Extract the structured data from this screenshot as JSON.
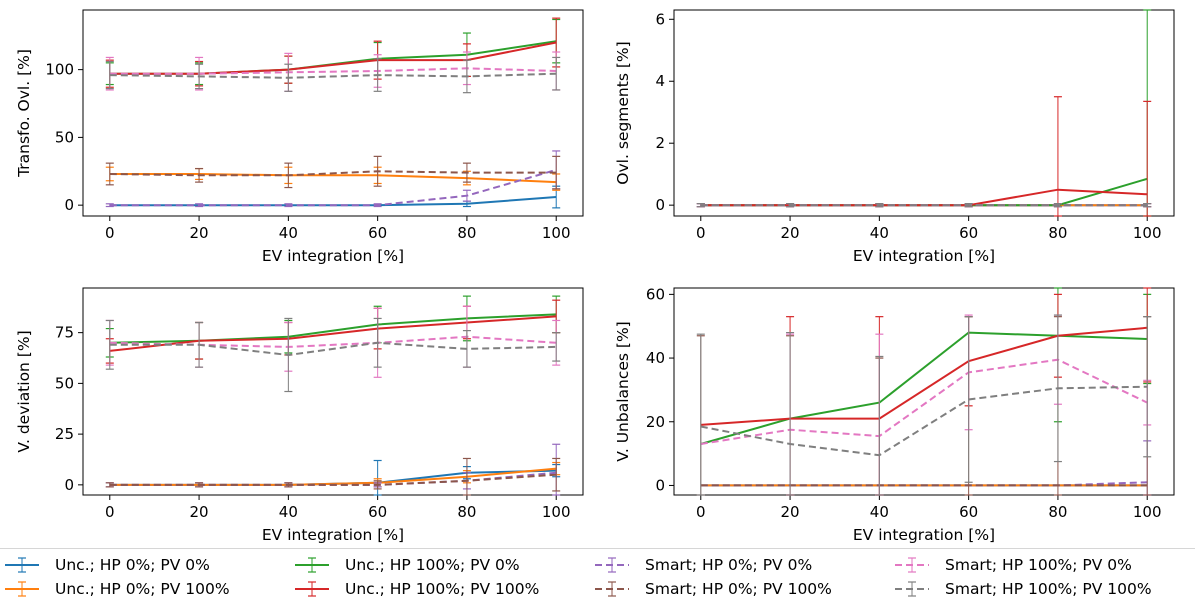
{
  "chart_data": [
    {
      "type": "line",
      "xlabel": "EV integration [%]",
      "ylabel": "Transfo. Ovl. [%]",
      "x": [
        0,
        20,
        40,
        60,
        80,
        100
      ],
      "xticks": [
        0,
        20,
        40,
        60,
        80,
        100
      ],
      "yticks": [
        0,
        50,
        100
      ],
      "xlim": [
        -6,
        106
      ],
      "ylim": [
        -8,
        144
      ],
      "series": [
        {
          "name": "Unc.; HP 0%; PV 0%",
          "color": "#1f77b4",
          "dash": "solid",
          "values": [
            0,
            0,
            0,
            0,
            1,
            6
          ],
          "err": [
            0,
            0,
            0,
            0,
            2,
            8
          ]
        },
        {
          "name": "Unc.; HP 0%; PV 100%",
          "color": "#ff7f0e",
          "dash": "solid",
          "values": [
            23,
            23,
            22,
            22,
            20,
            17
          ],
          "err": [
            5,
            4,
            6,
            6,
            5,
            6
          ]
        },
        {
          "name": "Unc.; HP 100%; PV 0%",
          "color": "#2ca02c",
          "dash": "solid",
          "values": [
            97,
            97,
            100,
            108,
            111,
            121
          ],
          "err": [
            8,
            8,
            10,
            12,
            16,
            16
          ]
        },
        {
          "name": "Unc.; HP 100%; PV 100%",
          "color": "#d62728",
          "dash": "solid",
          "values": [
            97,
            97,
            100,
            107,
            107,
            120
          ],
          "err": [
            10,
            9,
            10,
            14,
            12,
            18
          ]
        },
        {
          "name": "Smart; HP 0%; PV 0%",
          "color": "#9467bd",
          "dash": "dashed",
          "values": [
            0,
            0,
            0,
            0,
            7,
            26
          ],
          "err": [
            1,
            1,
            1,
            1,
            4,
            14
          ]
        },
        {
          "name": "Smart; HP 0%; PV 100%",
          "color": "#8c564b",
          "dash": "dashed",
          "values": [
            23,
            22,
            22,
            25,
            24,
            24
          ],
          "err": [
            8,
            5,
            9,
            11,
            7,
            12
          ]
        },
        {
          "name": "Smart; HP 100%; PV 0%",
          "color": "#e377c2",
          "dash": "dashed",
          "values": [
            97,
            97,
            98,
            99,
            101,
            99
          ],
          "err": [
            12,
            12,
            14,
            12,
            12,
            14
          ]
        },
        {
          "name": "Smart; HP 100%; PV 100%",
          "color": "#7f7f7f",
          "dash": "dashed",
          "values": [
            96,
            95,
            94,
            96,
            95,
            97
          ],
          "err": [
            10,
            9,
            10,
            12,
            12,
            12
          ]
        }
      ]
    },
    {
      "type": "line",
      "xlabel": "EV integration [%]",
      "ylabel": "Ovl. segments [%]",
      "x": [
        0,
        20,
        40,
        60,
        80,
        100
      ],
      "xticks": [
        0,
        20,
        40,
        60,
        80,
        100
      ],
      "yticks": [
        0,
        2,
        4,
        6
      ],
      "xlim": [
        -6,
        106
      ],
      "ylim": [
        -0.35,
        6.3
      ],
      "series": [
        {
          "name": "Unc.; HP 0%; PV 0%",
          "color": "#1f77b4",
          "dash": "solid",
          "values": [
            0,
            0,
            0,
            0,
            0,
            0
          ],
          "err": [
            0,
            0,
            0,
            0,
            0,
            0
          ]
        },
        {
          "name": "Unc.; HP 0%; PV 100%",
          "color": "#ff7f0e",
          "dash": "solid",
          "values": [
            0,
            0,
            0,
            0,
            0,
            0
          ],
          "err": [
            0,
            0,
            0,
            0,
            0,
            0
          ]
        },
        {
          "name": "Unc.; HP 100%; PV 0%",
          "color": "#2ca02c",
          "dash": "solid",
          "values": [
            0,
            0,
            0,
            0,
            0,
            0.85
          ],
          "err": [
            0,
            0,
            0,
            0,
            0,
            6
          ]
        },
        {
          "name": "Unc.; HP 100%; PV 100%",
          "color": "#d62728",
          "dash": "solid",
          "values": [
            0,
            0,
            0,
            0,
            0.5,
            0.35
          ],
          "err": [
            0,
            0,
            0,
            0,
            3,
            3
          ]
        },
        {
          "name": "Smart; HP 0%; PV 0%",
          "color": "#9467bd",
          "dash": "dashed",
          "values": [
            0,
            0,
            0,
            0,
            0,
            0
          ],
          "err": [
            0.05,
            0.05,
            0.05,
            0.05,
            0.05,
            0.05
          ]
        },
        {
          "name": "Smart; HP 0%; PV 100%",
          "color": "#8c564b",
          "dash": "dashed",
          "values": [
            0,
            0,
            0,
            0,
            0,
            0
          ],
          "err": [
            0.05,
            0.05,
            0.05,
            0.05,
            0.05,
            0.05
          ]
        },
        {
          "name": "Smart; HP 100%; PV 0%",
          "color": "#e377c2",
          "dash": "dashed",
          "values": [
            0,
            0,
            0,
            0,
            0,
            0
          ],
          "err": [
            0.05,
            0.05,
            0.05,
            0.05,
            0.05,
            0.05
          ]
        },
        {
          "name": "Smart; HP 100%; PV 100%",
          "color": "#7f7f7f",
          "dash": "dashed",
          "values": [
            0,
            0,
            0,
            0,
            0,
            0
          ],
          "err": [
            0.05,
            0.05,
            0.05,
            0.05,
            0.05,
            0.05
          ]
        }
      ]
    },
    {
      "type": "line",
      "xlabel": "EV integration [%]",
      "ylabel": "V. deviation [%]",
      "x": [
        0,
        20,
        40,
        60,
        80,
        100
      ],
      "xticks": [
        0,
        20,
        40,
        60,
        80,
        100
      ],
      "yticks": [
        0,
        25,
        50,
        75
      ],
      "xlim": [
        -6,
        106
      ],
      "ylim": [
        -5,
        97
      ],
      "series": [
        {
          "name": "Unc.; HP 0%; PV 0%",
          "color": "#1f77b4",
          "dash": "solid",
          "values": [
            0,
            0,
            0,
            1,
            6,
            7
          ],
          "err": [
            0,
            0,
            0,
            11,
            3,
            3
          ]
        },
        {
          "name": "Unc.; HP 0%; PV 100%",
          "color": "#ff7f0e",
          "dash": "solid",
          "values": [
            0,
            0,
            0,
            1,
            4,
            8
          ],
          "err": [
            0,
            0,
            0,
            2,
            3,
            3
          ]
        },
        {
          "name": "Unc.; HP 100%; PV 0%",
          "color": "#2ca02c",
          "dash": "solid",
          "values": [
            70,
            71,
            73,
            79,
            82,
            84
          ],
          "err": [
            7,
            9,
            8,
            9,
            11,
            9
          ]
        },
        {
          "name": "Unc.; HP 100%; PV 100%",
          "color": "#d62728",
          "dash": "solid",
          "values": [
            66,
            71,
            72,
            77,
            80,
            83
          ],
          "err": [
            6,
            9,
            8,
            10,
            8,
            8
          ]
        },
        {
          "name": "Smart; HP 0%; PV 0%",
          "color": "#9467bd",
          "dash": "dashed",
          "values": [
            0,
            0,
            0,
            0,
            2,
            6
          ],
          "err": [
            1,
            1,
            1,
            1,
            4,
            14
          ]
        },
        {
          "name": "Smart; HP 0%; PV 100%",
          "color": "#8c564b",
          "dash": "dashed",
          "values": [
            0,
            0,
            0,
            0,
            2,
            5
          ],
          "err": [
            1,
            1,
            1,
            2,
            11,
            8
          ]
        },
        {
          "name": "Smart; HP 100%; PV 0%",
          "color": "#e377c2",
          "dash": "dashed",
          "values": [
            70,
            69,
            68,
            70,
            73,
            70
          ],
          "err": [
            11,
            11,
            12,
            17,
            15,
            11
          ]
        },
        {
          "name": "Smart; HP 100%; PV 100%",
          "color": "#7f7f7f",
          "dash": "dashed",
          "values": [
            69,
            69,
            64,
            70,
            67,
            68
          ],
          "err": [
            12,
            11,
            18,
            12,
            9,
            7
          ]
        }
      ]
    },
    {
      "type": "line",
      "xlabel": "EV integration [%]",
      "ylabel": "V. Unbalances [%]",
      "x": [
        0,
        20,
        40,
        60,
        80,
        100
      ],
      "xticks": [
        0,
        20,
        40,
        60,
        80,
        100
      ],
      "yticks": [
        0,
        20,
        40,
        60
      ],
      "xlim": [
        -6,
        106
      ],
      "ylim": [
        -3,
        62
      ],
      "series": [
        {
          "name": "Unc.; HP 0%; PV 0%",
          "color": "#1f77b4",
          "dash": "solid",
          "values": [
            0,
            0,
            0,
            0,
            0,
            0
          ],
          "err": [
            0,
            0,
            0,
            0,
            0,
            0
          ]
        },
        {
          "name": "Unc.; HP 0%; PV 100%",
          "color": "#ff7f0e",
          "dash": "solid",
          "values": [
            0,
            0,
            0,
            0,
            0,
            0
          ],
          "err": [
            0,
            0,
            0,
            0,
            0,
            0
          ]
        },
        {
          "name": "Unc.; HP 100%; PV 0%",
          "color": "#2ca02c",
          "dash": "solid",
          "values": [
            13,
            21,
            26,
            48,
            47,
            46
          ],
          "err": [
            0,
            0,
            0,
            0,
            27,
            14
          ]
        },
        {
          "name": "Unc.; HP 100%; PV 100%",
          "color": "#d62728",
          "dash": "solid",
          "values": [
            19,
            21,
            21,
            39,
            47,
            49.5
          ],
          "err": [
            0,
            32,
            32,
            14,
            13,
            17
          ]
        },
        {
          "name": "Smart; HP 0%; PV 0%",
          "color": "#9467bd",
          "dash": "dashed",
          "values": [
            0,
            0,
            0,
            0,
            0,
            1
          ],
          "err": [
            0,
            0,
            0,
            0,
            0,
            13
          ]
        },
        {
          "name": "Smart; HP 0%; PV 100%",
          "color": "#8c564b",
          "dash": "dashed",
          "values": [
            0,
            0,
            0,
            0,
            0,
            0
          ],
          "err": [
            47,
            47,
            40,
            53,
            53,
            53
          ]
        },
        {
          "name": "Smart; HP 100%; PV 0%",
          "color": "#e377c2",
          "dash": "dashed",
          "values": [
            13,
            17.5,
            15.5,
            35.5,
            39.5,
            26
          ],
          "err": [
            0,
            30,
            32,
            18,
            14,
            7
          ]
        },
        {
          "name": "Smart; HP 100%; PV 100%",
          "color": "#7f7f7f",
          "dash": "dashed",
          "values": [
            18.5,
            13,
            9.5,
            27,
            30.5,
            31
          ],
          "err": [
            29,
            35,
            31,
            26,
            23,
            22
          ]
        }
      ]
    }
  ],
  "legend": {
    "items": [
      {
        "label": "Unc.; HP 0%; PV 0%",
        "color": "#1f77b4",
        "dash": "solid"
      },
      {
        "label": "Unc.; HP 0%; PV 100%",
        "color": "#ff7f0e",
        "dash": "solid"
      },
      {
        "label": "Unc.; HP 100%; PV 0%",
        "color": "#2ca02c",
        "dash": "solid"
      },
      {
        "label": "Unc.; HP 100%; PV 100%",
        "color": "#d62728",
        "dash": "solid"
      },
      {
        "label": "Smart; HP 0%; PV 0%",
        "color": "#9467bd",
        "dash": "dashed"
      },
      {
        "label": "Smart; HP 0%; PV 100%",
        "color": "#8c564b",
        "dash": "dashed"
      },
      {
        "label": "Smart; HP 100%; PV 0%",
        "color": "#e377c2",
        "dash": "dashed"
      },
      {
        "label": "Smart; HP 100%; PV 100%",
        "color": "#7f7f7f",
        "dash": "dashed"
      }
    ]
  }
}
